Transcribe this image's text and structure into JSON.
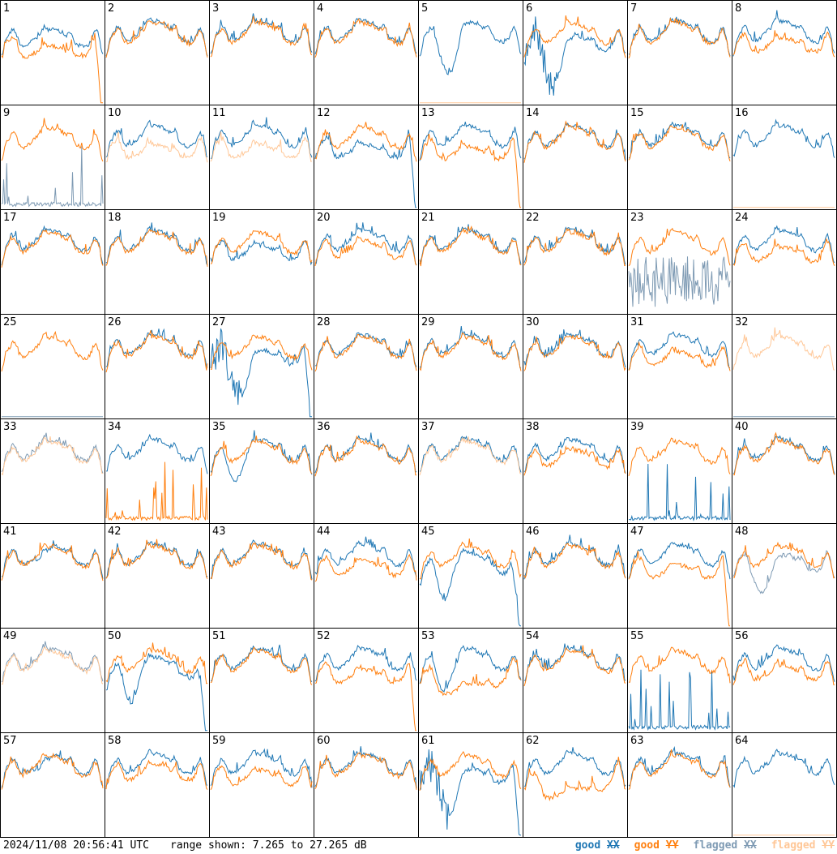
{
  "colors": {
    "good_xx": "#1f77b4",
    "good_yy": "#ff7f0e",
    "flagged_xx": "#7f9bb4",
    "flagged_yy": "#ffc797"
  },
  "footer": {
    "timestamp": "2024/11/08 20:56:41 UTC",
    "range_text": "range shown: 7.265 to 27.265 dB",
    "legend": {
      "good_label": "good",
      "flagged_label": "flagged",
      "xx": "XX",
      "yy": "YY"
    }
  },
  "chart_data": {
    "type": "line",
    "grid": "8x8",
    "y_range_db": [
      7.265,
      27.265
    ],
    "panel_labels": [
      "1",
      "2",
      "3",
      "4",
      "5",
      "6",
      "7",
      "8",
      "9",
      "10",
      "11",
      "12",
      "13",
      "14",
      "15",
      "16",
      "17",
      "18",
      "19",
      "20",
      "21",
      "22",
      "23",
      "24",
      "25",
      "26",
      "27",
      "28",
      "29",
      "30",
      "31",
      "32",
      "33",
      "34",
      "35",
      "36",
      "37",
      "38",
      "39",
      "40",
      "41",
      "42",
      "43",
      "44",
      "45",
      "46",
      "47",
      "48",
      "49",
      "50",
      "51",
      "52",
      "53",
      "54",
      "55",
      "56",
      "57",
      "58",
      "59",
      "60",
      "61",
      "62",
      "63",
      "64"
    ],
    "panel_shapes": {
      "1": {
        "xx": "droop_partial",
        "yy": "dropout_end"
      },
      "5": {
        "xx": "dip_big",
        "yy": "flagged_dead"
      },
      "6": {
        "xx": "lowtrough",
        "yy": "normal"
      },
      "8": {
        "xx": "normal",
        "yy": "droop"
      },
      "9": {
        "xx": "flagged_spikes",
        "yy": "normal"
      },
      "10": {
        "xx": "normal",
        "yy": "flagged_droop"
      },
      "11": {
        "xx": "normal",
        "yy": "flagged_droop"
      },
      "12": {
        "xx": "droop_dropout",
        "yy": "normal"
      },
      "13": {
        "xx": "normal",
        "yy": "droop_dropout"
      },
      "16": {
        "xx": "normal",
        "yy": "flagged_dead"
      },
      "19": {
        "xx": "droop_moderate",
        "yy": "normal"
      },
      "20": {
        "xx": "normal",
        "yy": "droop_slight"
      },
      "23": {
        "xx": "flagged_noise",
        "yy": "normal"
      },
      "24": {
        "xx": "normal",
        "yy": "droop_moderate"
      },
      "25": {
        "xx": "flagged_dead",
        "yy": "normal"
      },
      "27": {
        "xx": "lowtrough_dropout",
        "yy": "normal"
      },
      "31": {
        "xx": "normal",
        "yy": "droop_moderate"
      },
      "32": {
        "xx": "flagged_dead",
        "yy": "flagged_normal"
      },
      "33": {
        "xx": "flagged_normal",
        "yy": "flagged_normal"
      },
      "34": {
        "xx": "normal",
        "yy": "spikes_low"
      },
      "35": {
        "xx": "dip_moderate",
        "yy": "normal"
      },
      "37": {
        "xx": "normal",
        "yy": "flagged_normal"
      },
      "38": {
        "xx": "normal",
        "yy": "droop_slight"
      },
      "39": {
        "xx": "spike_dead",
        "yy": "normal"
      },
      "41": {
        "xx": "dip_small",
        "yy": "normal"
      },
      "44": {
        "xx": "normal",
        "yy": "droop_moderate"
      },
      "45": {
        "xx": "dip_dropout",
        "yy": "normal"
      },
      "47": {
        "xx": "normal",
        "yy": "droop_dropout"
      },
      "48": {
        "xx": "flagged_dip",
        "yy": "normal"
      },
      "49": {
        "xx": "flagged_normal",
        "yy": "flagged_normal"
      },
      "50": {
        "xx": "dip_dropout",
        "yy": "normal"
      },
      "52": {
        "xx": "normal",
        "yy": "droop_dropout"
      },
      "53": {
        "xx": "dip_moderate",
        "yy": "droop_big"
      },
      "55": {
        "xx": "spikes_low",
        "yy": "normal"
      },
      "56": {
        "xx": "normal",
        "yy": "droop_moderate"
      },
      "57": {
        "xx": "dip_small",
        "yy": "normal"
      },
      "58": {
        "xx": "normal",
        "yy": "droop_slight"
      },
      "59": {
        "xx": "normal",
        "yy": "droop_moderate"
      },
      "61": {
        "xx": "lowtrough_dropout",
        "yy": "normal"
      },
      "62": {
        "xx": "normal",
        "yy": "droop_big"
      },
      "64": {
        "xx": "normal",
        "yy": "flagged_dead"
      }
    }
  }
}
